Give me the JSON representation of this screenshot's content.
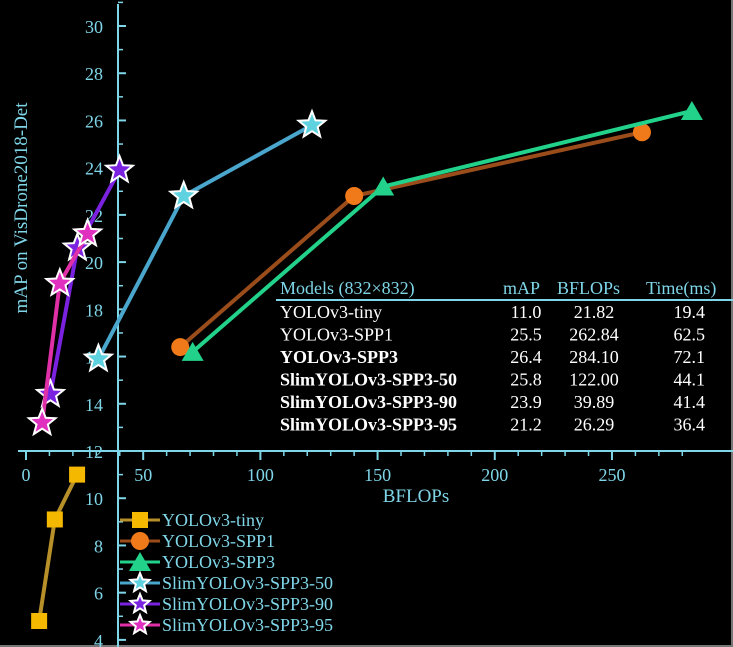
{
  "chart_data": {
    "type": "line",
    "xlabel": "BFLOPs",
    "ylabel": "mAP on VisDrone2018-Det",
    "xlim": [
      0,
      290
    ],
    "ylim": [
      4,
      31
    ],
    "x_ticks": [
      "0",
      "50",
      "100",
      "150",
      "200",
      "250"
    ],
    "y_ticks": [
      "4",
      "6",
      "8",
      "10",
      "12",
      "14",
      "16",
      "18",
      "20",
      "22",
      "24",
      "26",
      "28",
      "30"
    ],
    "series": [
      {
        "name": "YOLOv3-tiny",
        "color": "#f5b800",
        "line": "#b8902a",
        "marker": "square",
        "points": [
          [
            5.6,
            4.8
          ],
          [
            12.3,
            9.1
          ],
          [
            21.8,
            11.0
          ]
        ]
      },
      {
        "name": "YOLOv3-SPP1",
        "color": "#f07a1a",
        "line": "#9a4d1a",
        "marker": "circle",
        "points": [
          [
            65.8,
            16.4
          ],
          [
            140.0,
            22.8
          ],
          [
            262.8,
            25.5
          ]
        ]
      },
      {
        "name": "YOLOv3-SPP3",
        "color": "#22d28a",
        "line": "#22d28a",
        "marker": "triangle",
        "points": [
          [
            71.1,
            16.2
          ],
          [
            152.4,
            23.2
          ],
          [
            284.1,
            26.4
          ]
        ]
      },
      {
        "name": "SlimYOLOv3-SPP3-50",
        "color": "#5fd2e0",
        "line": "#4aa6cc",
        "marker": "star",
        "points": [
          [
            30.9,
            15.9
          ],
          [
            67.3,
            22.8
          ],
          [
            122.0,
            25.8
          ]
        ]
      },
      {
        "name": "SlimYOLOv3-SPP3-90",
        "color": "#7a22e0",
        "line": "#7a22e0",
        "marker": "star",
        "points": [
          [
            10.4,
            14.4
          ],
          [
            21.9,
            20.6
          ],
          [
            39.9,
            23.9
          ]
        ]
      },
      {
        "name": "SlimYOLOv3-SPP3-95",
        "color": "#e030c0",
        "line": "#e030a8",
        "marker": "star",
        "points": [
          [
            6.9,
            13.2
          ],
          [
            14.4,
            19.1
          ],
          [
            26.3,
            21.2
          ]
        ]
      }
    ],
    "legend_placement": "bottom-left",
    "table": {
      "headers": [
        "Models (832×832)",
        "mAP",
        "BFLOPs",
        "Time(ms)"
      ],
      "rows": [
        {
          "model": "YOLOv3-tiny",
          "map": "11.0",
          "bflops": "21.82",
          "time": "19.4",
          "bold": false
        },
        {
          "model": "YOLOv3-SPP1",
          "map": "25.5",
          "bflops": "262.84",
          "time": "62.5",
          "bold": false
        },
        {
          "model": "YOLOv3-SPP3",
          "map": "26.4",
          "bflops": "284.10",
          "time": "72.1",
          "bold": true
        },
        {
          "model": "SlimYOLOv3-SPP3-50",
          "map": "25.8",
          "bflops": "122.00",
          "time": "44.1",
          "bold": true
        },
        {
          "model": "SlimYOLOv3-SPP3-90",
          "map": "23.9",
          "bflops": "39.89",
          "time": "41.4",
          "bold": true
        },
        {
          "model": "SlimYOLOv3-SPP3-95",
          "map": "21.2",
          "bflops": "26.29",
          "time": "36.4",
          "bold": true
        }
      ]
    },
    "axis_color": "#7fd6e8"
  }
}
